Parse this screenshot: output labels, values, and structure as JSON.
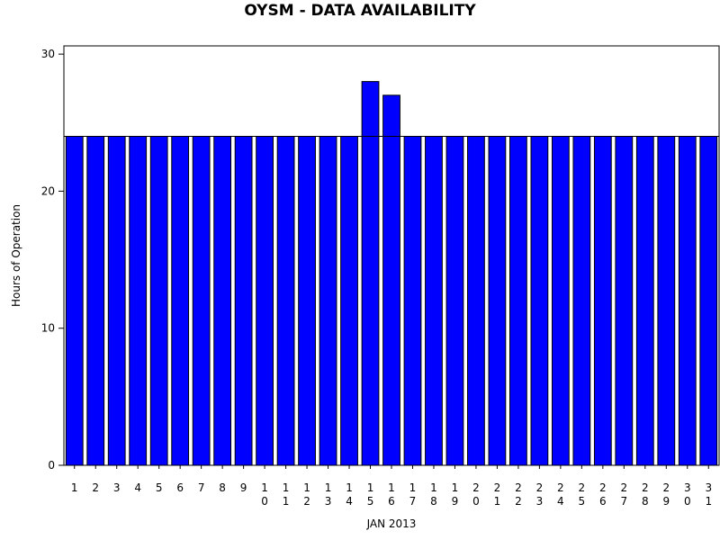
{
  "chart_data": {
    "type": "bar",
    "title": "OYSM - DATA AVAILABILITY",
    "x_label": "JAN 2013",
    "y_label": "Hours of Operation",
    "categories": [
      "1",
      "2",
      "3",
      "4",
      "5",
      "6",
      "7",
      "8",
      "9",
      "10",
      "11",
      "12",
      "13",
      "14",
      "15",
      "16",
      "17",
      "18",
      "19",
      "20",
      "21",
      "22",
      "23",
      "24",
      "25",
      "26",
      "27",
      "28",
      "29",
      "30",
      "31"
    ],
    "values": [
      24,
      24,
      24,
      24,
      24,
      24,
      24,
      24,
      24,
      24,
      24,
      24,
      24,
      24,
      28,
      27,
      24,
      24,
      24,
      24,
      24,
      24,
      24,
      24,
      24,
      24,
      24,
      24,
      24,
      24,
      24
    ],
    "color": "#0000ff",
    "reference_line": 24,
    "ylim": [
      0,
      30.6
    ],
    "yticks": [
      0,
      10,
      20,
      30
    ]
  }
}
